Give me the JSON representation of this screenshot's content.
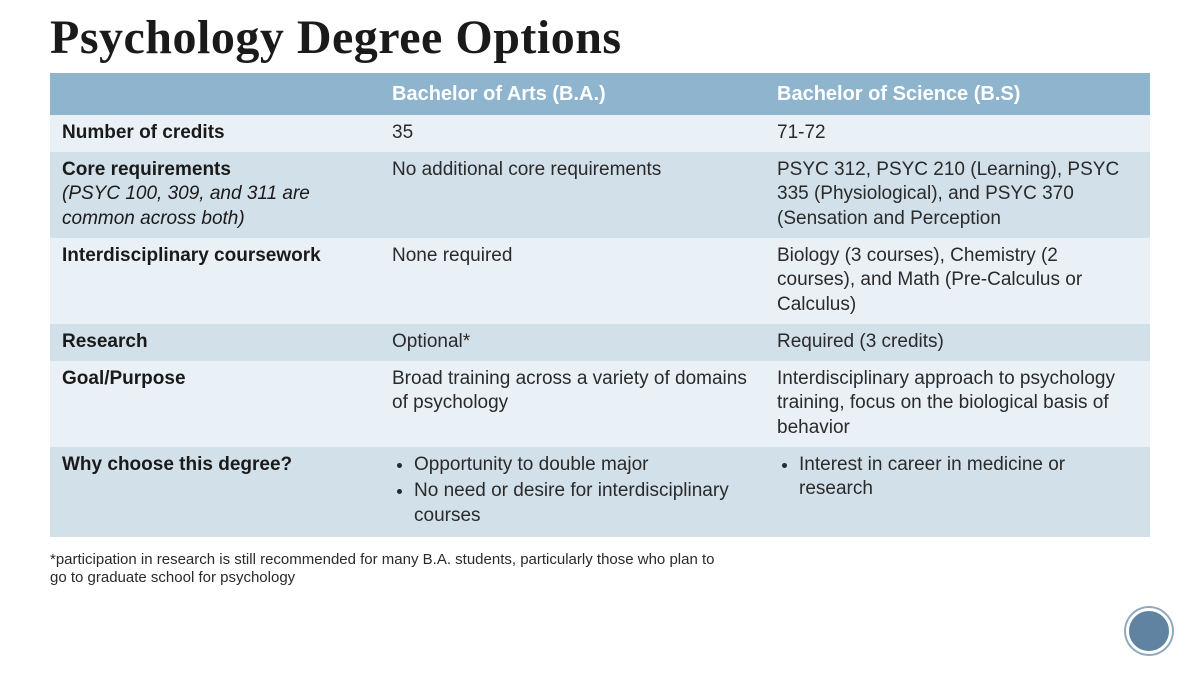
{
  "title": "Psychology Degree Options",
  "table": {
    "headers": [
      "",
      "Bachelor of Arts (B.A.)",
      "Bachelor of Science (B.S)"
    ],
    "rows": [
      {
        "label": "Number of credits",
        "sublabel": "",
        "ba": "35",
        "bs": "71-72",
        "shade": "light"
      },
      {
        "label": "Core requirements",
        "sublabel": "(PSYC 100, 309, and 311 are common across both)",
        "ba": "No additional core requirements",
        "bs": "PSYC 312, PSYC 210 (Learning), PSYC 335 (Physiological), and PSYC 370 (Sensation and Perception",
        "shade": "dark"
      },
      {
        "label": "Interdisciplinary coursework",
        "sublabel": "",
        "ba": "None required",
        "bs": "Biology (3 courses), Chemistry (2 courses), and Math (Pre-Calculus or Calculus)",
        "shade": "light"
      },
      {
        "label": "Research",
        "sublabel": "",
        "ba": "Optional*",
        "bs": "Required (3 credits)",
        "shade": "dark"
      },
      {
        "label": "Goal/Purpose",
        "sublabel": "",
        "ba": "Broad training across a variety of domains of psychology",
        "bs": "Interdisciplinary approach to psychology training, focus on the biological basis of behavior",
        "shade": "light"
      },
      {
        "label": "Why choose this degree?",
        "sublabel": "",
        "ba_list": [
          "Opportunity to double major",
          "No need or desire for interdisciplinary courses"
        ],
        "bs_list": [
          "Interest in career in medicine or research"
        ],
        "shade": "dark"
      }
    ]
  },
  "footnote": "*participation in research is still recommended for many B.A. students, particularly those who plan to go to graduate school for psychology",
  "colors": {
    "header_bg": "#8fb4cd",
    "row_light": "#eaf1f6",
    "row_dark": "#d2e0ea",
    "circle_fill": "#5f83a0"
  }
}
